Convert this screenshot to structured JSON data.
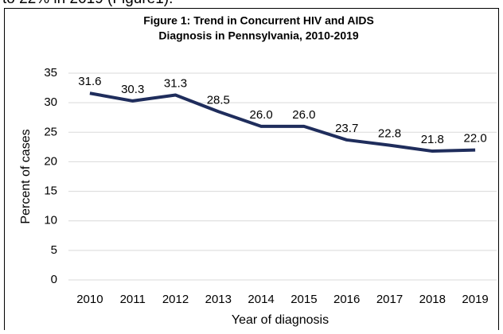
{
  "intro_text": "to 22% in 2019 (Figure1).",
  "chart_data": {
    "type": "line",
    "title": "Figure 1: Trend in Concurrent HIV and AIDS",
    "subtitle": "Diagnosis in Pennsylvania, 2010-2019",
    "x_label": "Year of diagnosis",
    "y_label": "Percent of cases",
    "categories": [
      "2010",
      "2011",
      "2012",
      "2013",
      "2014",
      "2015",
      "2016",
      "2017",
      "2018",
      "2019"
    ],
    "values": [
      31.6,
      30.3,
      31.3,
      28.5,
      26,
      26,
      23.7,
      22.8,
      21.8,
      22
    ],
    "value_labels": [
      "31.6",
      "30.3",
      "31.3",
      "28.5",
      "26.0",
      "26.0",
      "23.7",
      "22.8",
      "21.8",
      "22.0"
    ],
    "color": "#1f2d5c",
    "ylim": [
      0,
      35
    ],
    "yticks": [
      0,
      5,
      10,
      15,
      20,
      25,
      30,
      35
    ],
    "grid": true
  }
}
